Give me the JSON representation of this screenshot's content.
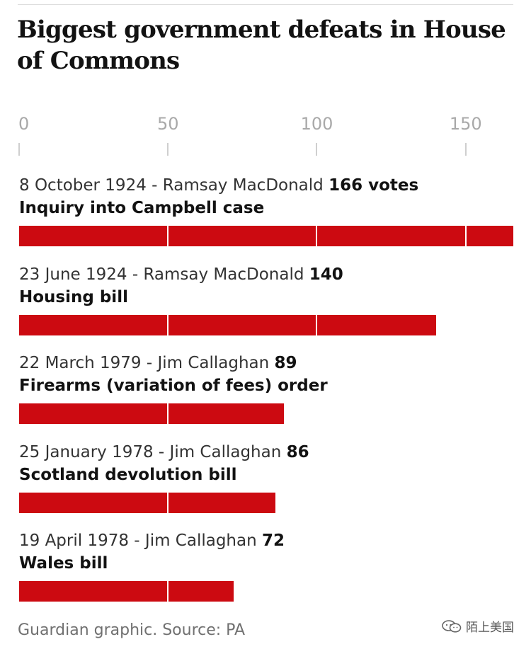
{
  "title": "Biggest government defeats in House of Commons",
  "source": "Guardian graphic. Source: PA",
  "watermark": "陌上美国",
  "watermark_icon": "wechat-icon",
  "colors": {
    "bar": "#cc0a11",
    "axis_text": "#a9a9a9",
    "text": "#121212"
  },
  "chart_data": {
    "type": "bar",
    "orientation": "horizontal",
    "title": "Biggest government defeats in House of Commons",
    "x_ticks": [
      0,
      50,
      100,
      150
    ],
    "xlim": [
      0,
      166
    ],
    "grid": true,
    "rows": [
      {
        "date_pm": "8 October 1924 - Ramsay MacDonald",
        "value": 166,
        "value_label": "166 votes",
        "subject": "Inquiry into Campbell case"
      },
      {
        "date_pm": "23 June 1924 - Ramsay MacDonald",
        "value": 140,
        "value_label": "140",
        "subject": "Housing bill"
      },
      {
        "date_pm": "22 March 1979 - Jim Callaghan",
        "value": 89,
        "value_label": "89",
        "subject": "Firearms (variation of fees) order"
      },
      {
        "date_pm": "25 January 1978 - Jim Callaghan",
        "value": 86,
        "value_label": "86",
        "subject": "Scotland devolution bill"
      },
      {
        "date_pm": "19 April 1978 - Jim Callaghan",
        "value": 72,
        "value_label": "72",
        "subject": "Wales bill"
      }
    ]
  }
}
